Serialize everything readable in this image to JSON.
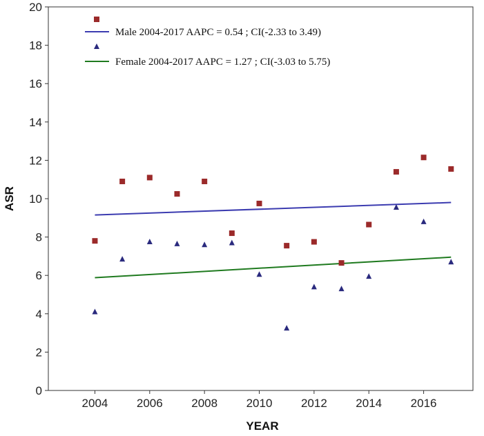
{
  "chart_data": {
    "type": "scatter",
    "title": "",
    "xlabel": "YEAR",
    "ylabel": "ASR",
    "xlim": [
      2002.3,
      2017.8
    ],
    "ylim": [
      0,
      20
    ],
    "xticks": [
      2004,
      2006,
      2008,
      2010,
      2012,
      2014,
      2016
    ],
    "yticks": [
      0,
      2,
      4,
      6,
      8,
      10,
      12,
      14,
      16,
      18,
      20
    ],
    "grid": false,
    "legend_position": "top-left",
    "series": [
      {
        "name": "Male",
        "marker": "square",
        "color": "#9b2a2a",
        "x": [
          2004,
          2005,
          2006,
          2007,
          2008,
          2009,
          2010,
          2011,
          2012,
          2013,
          2014,
          2015,
          2016,
          2017
        ],
        "y": [
          7.8,
          10.9,
          11.1,
          10.25,
          10.9,
          8.2,
          9.75,
          7.55,
          7.75,
          6.65,
          8.65,
          11.4,
          12.15,
          11.55
        ]
      },
      {
        "name": "Female",
        "marker": "triangle",
        "color": "#2a2a7e",
        "x": [
          2004,
          2005,
          2006,
          2007,
          2008,
          2009,
          2010,
          2011,
          2012,
          2013,
          2014,
          2015,
          2016,
          2017
        ],
        "y": [
          4.1,
          6.85,
          7.75,
          7.65,
          7.6,
          7.7,
          6.05,
          3.25,
          5.4,
          5.3,
          5.95,
          9.55,
          8.8,
          6.7
        ]
      }
    ],
    "trend_lines": [
      {
        "label": "Male  2004-2017 AAPC = 0.54 ; CI(-2.33 to 3.49)",
        "color": "#3b3bb0",
        "x": [
          2004,
          2017
        ],
        "y": [
          9.15,
          9.8
        ]
      },
      {
        "label": "Female 2004-2017 AAPC = 1.27 ; CI(-3.03 to 5.75)",
        "color": "#1f7a1f",
        "x": [
          2004,
          2017
        ],
        "y": [
          5.88,
          6.95
        ]
      }
    ]
  }
}
